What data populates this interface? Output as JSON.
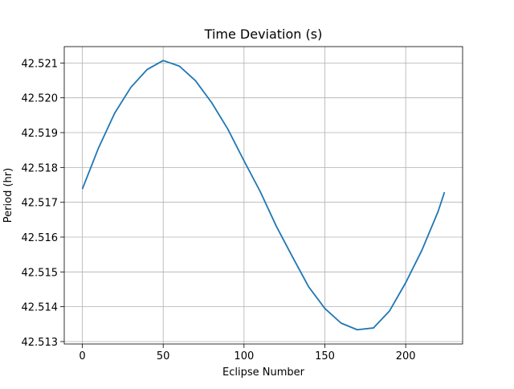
{
  "chart_data": {
    "type": "line",
    "title": "Time Deviation (s)",
    "xlabel": "Eclipse Number",
    "ylabel": "Period (hr)",
    "x": [
      0,
      10,
      20,
      30,
      40,
      50,
      60,
      70,
      80,
      90,
      100,
      110,
      120,
      130,
      140,
      150,
      160,
      170,
      180,
      190,
      200,
      210,
      220,
      224
    ],
    "values": [
      42.51738,
      42.51856,
      42.51956,
      42.5203,
      42.52081,
      42.52107,
      42.52091,
      42.52049,
      42.51986,
      42.5191,
      42.51819,
      42.51731,
      42.51631,
      42.51543,
      42.51457,
      42.51395,
      42.51353,
      42.51334,
      42.51339,
      42.51388,
      42.51469,
      42.51562,
      42.51673,
      42.51729
    ],
    "color": "#1f77b4",
    "xlim": [
      -11.2,
      235.2
    ],
    "xticks": [
      0,
      50,
      100,
      150,
      200
    ],
    "ylim": [
      42.51293,
      42.52147
    ],
    "yticks": [
      42.513,
      42.514,
      42.515,
      42.516,
      42.517,
      42.518,
      42.519,
      {
        "value": 42.52,
        "label": "42.520"
      },
      42.521
    ],
    "grid": true
  }
}
